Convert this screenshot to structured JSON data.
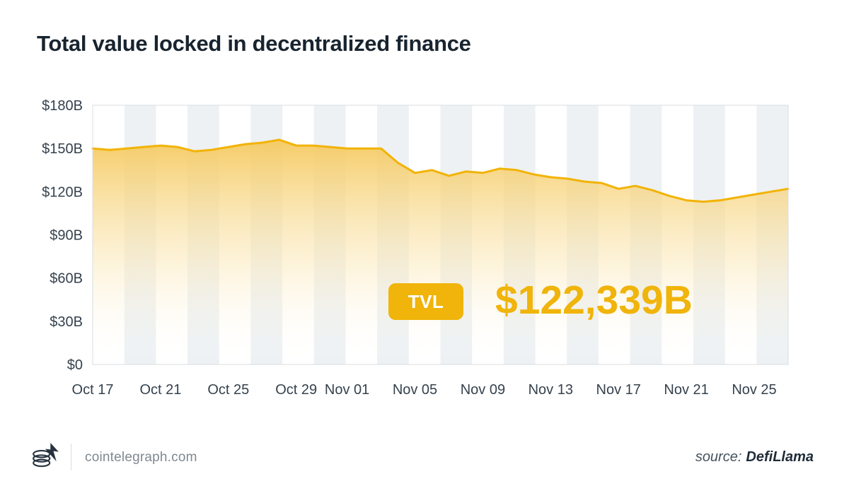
{
  "page": {
    "title": "Total value locked in decentralized finance",
    "background": "#ffffff"
  },
  "chart_data": {
    "type": "area",
    "title": "Total value locked in decentralized finance",
    "series_name": "TVL",
    "unit": "USD billions",
    "x": [
      "Oct 17",
      "Oct 18",
      "Oct 19",
      "Oct 20",
      "Oct 21",
      "Oct 22",
      "Oct 23",
      "Oct 24",
      "Oct 25",
      "Oct 26",
      "Oct 27",
      "Oct 28",
      "Oct 29",
      "Oct 30",
      "Oct 31",
      "Nov 01",
      "Nov 02",
      "Nov 03",
      "Nov 04",
      "Nov 05",
      "Nov 06",
      "Nov 07",
      "Nov 08",
      "Nov 09",
      "Nov 10",
      "Nov 11",
      "Nov 12",
      "Nov 13",
      "Nov 14",
      "Nov 15",
      "Nov 16",
      "Nov 17",
      "Nov 18",
      "Nov 19",
      "Nov 20",
      "Nov 21",
      "Nov 22",
      "Nov 23",
      "Nov 24",
      "Nov 25",
      "Nov 26",
      "Nov 27"
    ],
    "values": [
      150,
      149,
      150,
      151,
      152,
      151,
      148,
      149,
      151,
      153,
      154,
      156,
      152,
      152,
      151,
      150,
      150,
      150,
      140,
      133,
      135,
      131,
      134,
      133,
      136,
      135,
      132,
      130,
      129,
      127,
      126,
      122,
      124,
      121,
      117,
      114,
      113,
      114,
      116,
      118,
      120,
      122
    ],
    "x_tick_labels": [
      "Oct 17",
      "Oct 21",
      "Oct 25",
      "Oct 29",
      "Nov 01",
      "Nov 05",
      "Nov 09",
      "Nov 13",
      "Nov 17",
      "Nov 21",
      "Nov 25"
    ],
    "x_tick_indices": [
      0,
      4,
      8,
      12,
      15,
      19,
      23,
      27,
      31,
      35,
      39
    ],
    "y_ticks": [
      0,
      30,
      60,
      90,
      120,
      150,
      180
    ],
    "y_tick_labels": [
      "$0",
      "$30B",
      "$60B",
      "$90B",
      "$120B",
      "$150B",
      "$180B"
    ],
    "ylim": [
      0,
      180
    ],
    "grid": "vertical-stripes",
    "stripe_count": 22,
    "legend_position": "none",
    "line_color": "#f2b306",
    "fill_gradient_top": "#f5c95e",
    "stripe_color": "#edf1f4",
    "axis_label_color": "#35424e",
    "border_color": "#d8dde2"
  },
  "annotation": {
    "badge_label": "TVL",
    "value_text": "$122,339B"
  },
  "footer": {
    "brand": "cointelegraph.com",
    "source_label": "source:",
    "source_value": "DefiLlama"
  }
}
